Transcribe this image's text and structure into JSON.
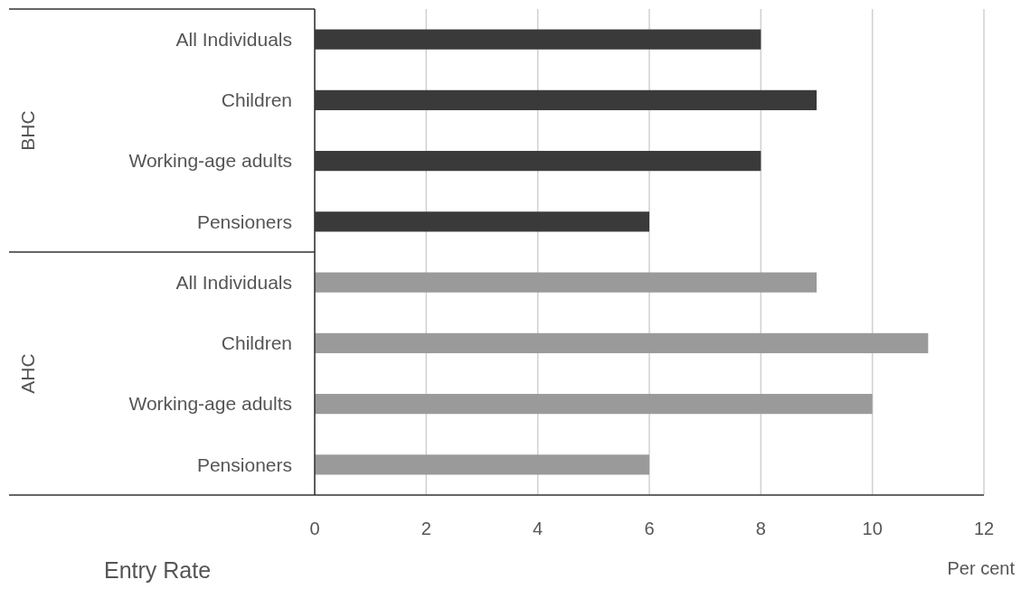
{
  "chart_data": {
    "type": "bar",
    "orientation": "horizontal",
    "title": "Entry Rate",
    "xlabel": "Per cent",
    "categories": [
      "All Individuals",
      "Children",
      "Working-age adults",
      "Pensioners",
      "All Individuals",
      "Children",
      "Working-age adults",
      "Pensioners"
    ],
    "values": [
      8,
      9,
      8,
      6,
      9,
      11,
      10,
      6
    ],
    "colors": [
      "#3a3a3a",
      "#3a3a3a",
      "#3a3a3a",
      "#3a3a3a",
      "#9a9a9a",
      "#9a9a9a",
      "#9a9a9a",
      "#9a9a9a"
    ],
    "annotations": [
      "BHC",
      "AHC"
    ],
    "xlim": [
      0,
      12
    ],
    "xticks": [
      0,
      2,
      4,
      6,
      8,
      10,
      12
    ],
    "grid": "x"
  }
}
